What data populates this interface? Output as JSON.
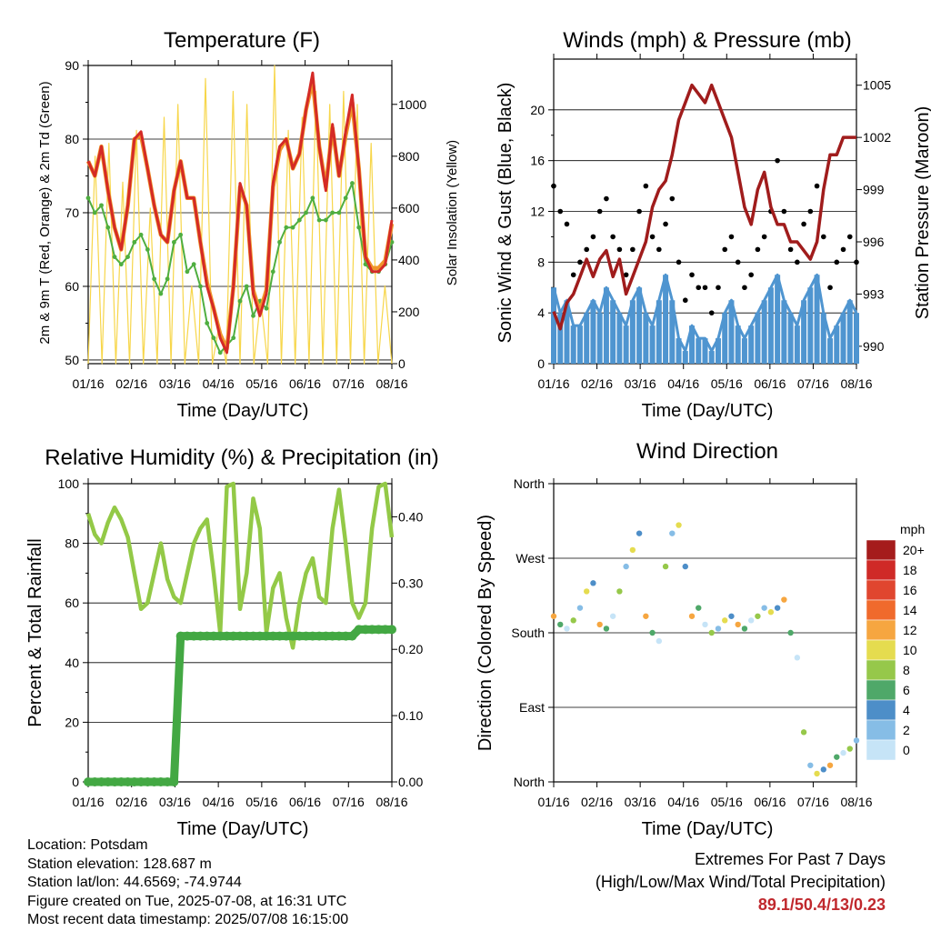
{
  "panels": {
    "temperature": {
      "title": "Temperature (F)",
      "ylabel_left": "2m & 9m T (Red, Orange) & 2m Td (Green)",
      "ylabel_right": "Solar Insolation (Yellow)",
      "xlabel": "Time (Day/UTC)"
    },
    "winds": {
      "title": "Winds (mph) & Pressure (mb)",
      "ylabel_left": "Sonic Wind & Gust (Blue, Black)",
      "ylabel_right": "Station Pressure (Maroon)",
      "xlabel": "Time (Day/UTC)"
    },
    "humidity": {
      "title": "Relative Humidity (%) & Precipitation (in)",
      "ylabel_left": "Percent & Total Rainfall",
      "xlabel": "Time (Day/UTC)"
    },
    "direction": {
      "title": "Wind Direction",
      "ylabel_left": "Direction (Colored By Speed)",
      "xlabel": "Time (Day/UTC)",
      "legend_title": "mph"
    }
  },
  "footer": {
    "location": "Location: Potsdam",
    "elevation": "Station elevation: 128.687 m",
    "latlon": "Station lat/lon: 44.6569; -74.9744",
    "created": "Figure created on Tue, 2025-07-08, at 16:31 UTC",
    "recent": "Most recent data timestamp: 2025/07/08 16:15:00",
    "extremes_title": "Extremes For Past 7 Days",
    "extremes_sub": "(High/Low/Max Wind/Total Precipitation)",
    "extremes_values": "89.1/50.4/13/0.23"
  },
  "chart_data": [
    {
      "type": "line",
      "title": "Temperature (F)",
      "xlabel": "Time (Day/UTC)",
      "ylabel": "2m & 9m T (Red, Orange) & 2m Td (Green)",
      "ylabel_right": "Solar Insolation (Yellow)",
      "x_ticks": [
        "01/16",
        "02/16",
        "03/16",
        "04/16",
        "05/16",
        "06/16",
        "07/16",
        "08/16"
      ],
      "ylim": [
        49.5,
        90
      ],
      "y_ticks": [
        50,
        60,
        70,
        80,
        90
      ],
      "ylim_right": [
        0,
        1150
      ],
      "y_ticks_right": [
        0,
        200,
        400,
        600,
        800,
        1000
      ],
      "grid": true,
      "colors": {
        "t2m": "#d42a26",
        "t9m": "#f0952a",
        "td": "#4fae40",
        "solar": "#f7d64a"
      },
      "series": [
        {
          "values": [
            77,
            75,
            79,
            73,
            68,
            65,
            71,
            80,
            81,
            76,
            71,
            67,
            66,
            73,
            77,
            72,
            72,
            66,
            60,
            57,
            53,
            51,
            60,
            74,
            71,
            59,
            56,
            59,
            74,
            79,
            80,
            76,
            78,
            84,
            89,
            79,
            73,
            82,
            75,
            81,
            86,
            76,
            64,
            62,
            62,
            63,
            69
          ]
        },
        {
          "values": [
            77,
            75,
            79,
            73,
            68,
            65,
            71,
            80,
            80.5,
            76,
            71,
            67,
            66,
            73,
            77,
            72,
            72,
            66,
            60.5,
            57,
            53.5,
            51.5,
            60,
            73.5,
            71,
            59.5,
            56.5,
            59.5,
            73.5,
            78.5,
            80,
            76,
            78,
            84,
            88,
            79,
            73.5,
            81.5,
            75,
            80.5,
            85,
            76,
            64,
            62.5,
            62.5,
            63.5,
            68.5
          ]
        },
        {
          "values": [
            72,
            70,
            71,
            68,
            64,
            63,
            64,
            66,
            67,
            65,
            61,
            59,
            61,
            66,
            67,
            62,
            63,
            60,
            55,
            53,
            51,
            52,
            53,
            58,
            60,
            56,
            58,
            57,
            62,
            66,
            68,
            68,
            69,
            70,
            72,
            69,
            69,
            70,
            70,
            72,
            74,
            68,
            63,
            62,
            62,
            63,
            66
          ]
        },
        {
          "values": [
            0,
            800,
            0,
            850,
            0,
            700,
            0,
            900,
            0,
            600,
            0,
            950,
            0,
            1000,
            0,
            300,
            0,
            1100,
            0,
            150,
            0,
            1050,
            0,
            1000,
            0,
            250,
            0,
            1150,
            0,
            900,
            0,
            950,
            0,
            1050,
            0,
            1000,
            0,
            1050,
            0,
            1000,
            0,
            850,
            0,
            300,
            0
          ]
        }
      ]
    },
    {
      "type": "scatter",
      "title": "Winds (mph) & Pressure (mb)",
      "xlabel": "Time (Day/UTC)",
      "ylabel": "Sonic Wind & Gust (Blue, Black)",
      "ylabel_right": "Station Pressure (Maroon)",
      "x_ticks": [
        "01/16",
        "02/16",
        "03/16",
        "04/16",
        "05/16",
        "06/16",
        "07/16",
        "08/16"
      ],
      "ylim": [
        0,
        24
      ],
      "y_ticks": [
        0,
        4,
        8,
        12,
        16,
        20
      ],
      "ylim_right": [
        989,
        1006.5
      ],
      "y_ticks_right": [
        990,
        993,
        996,
        999,
        1002,
        1005
      ],
      "grid": true,
      "colors": {
        "wind": "#4f95d0",
        "gust": "#000000",
        "pressure": "#a01c1c"
      },
      "series": [
        {
          "values": [
            6,
            4,
            5,
            3,
            3,
            4,
            5,
            4,
            6,
            5,
            4,
            3,
            5,
            6,
            4,
            3,
            5,
            7,
            5,
            2,
            1,
            3,
            2,
            2,
            1,
            2,
            4,
            5,
            3,
            2,
            3,
            4,
            5,
            6,
            7,
            5,
            4,
            3,
            5,
            6,
            7,
            4,
            2,
            3,
            4,
            5,
            4
          ]
        },
        {
          "values": [
            14,
            12,
            11,
            7,
            8,
            9,
            10,
            12,
            13,
            10,
            9,
            7,
            9,
            12,
            14,
            10,
            9,
            11,
            13,
            8,
            5,
            7,
            6,
            6,
            4,
            6,
            9,
            10,
            8,
            6,
            7,
            9,
            10,
            12,
            16,
            12,
            9,
            8,
            11,
            12,
            14,
            10,
            6,
            8,
            9,
            10,
            8
          ]
        },
        {
          "values": [
            992,
            991,
            992.5,
            993,
            994,
            995,
            994,
            995,
            995.5,
            994,
            995,
            993,
            994,
            995,
            996,
            998,
            999,
            999.5,
            1001,
            1003,
            1004,
            1005,
            1004.5,
            1004,
            1005,
            1004,
            1003,
            1002,
            1000,
            998,
            997,
            999,
            1000,
            998,
            997,
            997,
            996,
            996,
            995.5,
            995,
            996,
            999,
            1001,
            1001,
            1002,
            1002,
            1002
          ]
        }
      ]
    },
    {
      "type": "line",
      "title": "Relative Humidity (%) & Precipitation (in)",
      "xlabel": "Time (Day/UTC)",
      "ylabel": "Percent & Total Rainfall",
      "x_ticks": [
        "01/16",
        "02/16",
        "03/16",
        "04/16",
        "05/16",
        "06/16",
        "07/16",
        "08/16"
      ],
      "ylim": [
        0,
        100
      ],
      "y_ticks": [
        0,
        20,
        40,
        60,
        80,
        100
      ],
      "ylim_right": [
        0,
        0.45
      ],
      "y_ticks_right": [
        "0.00",
        "0.10",
        "0.20",
        "0.30",
        "0.40"
      ],
      "grid": true,
      "colors": {
        "rh": "#93c947",
        "precip": "#43a843"
      },
      "series": [
        {
          "values": [
            90,
            83,
            80,
            87,
            92,
            88,
            82,
            70,
            58,
            60,
            70,
            80,
            68,
            62,
            60,
            70,
            80,
            85,
            88,
            70,
            50,
            99,
            100,
            58,
            70,
            95,
            85,
            50,
            65,
            70,
            55,
            45,
            60,
            70,
            75,
            62,
            60,
            85,
            98,
            80,
            60,
            55,
            60,
            85,
            99,
            100,
            82
          ]
        },
        {
          "values": [
            0,
            0,
            0,
            0,
            0,
            0,
            0,
            0,
            0,
            0,
            0,
            0,
            0,
            0,
            0.22,
            0.22,
            0.22,
            0.22,
            0.22,
            0.22,
            0.22,
            0.22,
            0.22,
            0.22,
            0.22,
            0.22,
            0.22,
            0.22,
            0.22,
            0.22,
            0.22,
            0.22,
            0.22,
            0.22,
            0.22,
            0.22,
            0.22,
            0.22,
            0.22,
            0.22,
            0.22,
            0.23,
            0.23,
            0.23,
            0.23,
            0.23,
            0.23
          ]
        }
      ]
    },
    {
      "type": "scatter",
      "title": "Wind Direction",
      "xlabel": "Time (Day/UTC)",
      "ylabel": "Direction (Colored By Speed)",
      "x_ticks": [
        "01/16",
        "02/16",
        "03/16",
        "04/16",
        "05/16",
        "06/16",
        "07/16",
        "08/16"
      ],
      "y_ticks": [
        "North",
        "East",
        "South",
        "West",
        "North"
      ],
      "ylim": [
        0,
        360
      ],
      "grid": true,
      "legend": {
        "title": "mph",
        "labels": [
          "20+",
          "18",
          "16",
          "14",
          "12",
          "10",
          "8",
          "6",
          "4",
          "2",
          "0"
        ],
        "colors": [
          "#a51c1c",
          "#cf2a27",
          "#e0462f",
          "#f06a2c",
          "#f6a640",
          "#e5dc4f",
          "#96c84a",
          "#4fa869",
          "#4d8ec8",
          "#86bde6",
          "#c6e4f7"
        ],
        "placement": "right"
      },
      "series": [
        {
          "values": [
            200,
            190,
            185,
            195,
            210,
            230,
            240,
            190,
            185,
            200,
            230,
            260,
            280,
            300,
            200,
            180,
            170,
            260,
            300,
            310,
            260,
            200,
            210,
            190,
            180,
            185,
            195,
            200,
            190,
            185,
            195,
            200,
            210,
            205,
            210,
            220,
            180,
            150,
            60,
            20,
            10,
            15,
            20,
            30,
            35,
            40,
            50
          ]
        }
      ]
    }
  ]
}
